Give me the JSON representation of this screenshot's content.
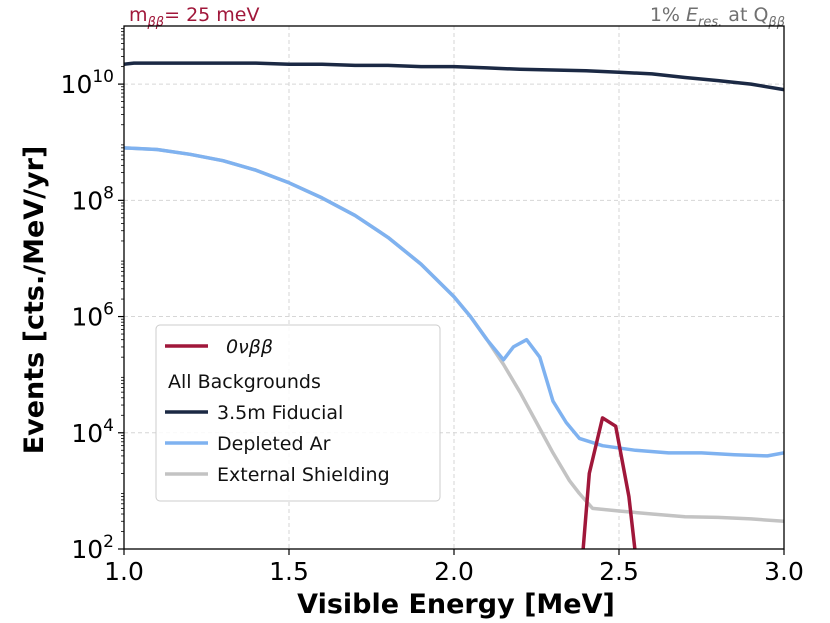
{
  "chart_data": {
    "type": "line",
    "xlabel": "Visible Energy [MeV]",
    "ylabel": "Events  [cts./MeV/yr]",
    "xlim": [
      1.0,
      3.0
    ],
    "ylim": [
      100,
      100000000000
    ],
    "yscale": "log",
    "grid": true,
    "legend_position": "lower-left",
    "x_ticks": [
      "1.0",
      "1.5",
      "2.0",
      "2.5",
      "3.0"
    ],
    "y_ticks": [
      {
        "base": "10",
        "exp": "2",
        "value": 100
      },
      {
        "base": "10",
        "exp": "4",
        "value": 10000
      },
      {
        "base": "10",
        "exp": "6",
        "value": 1000000
      },
      {
        "base": "10",
        "exp": "8",
        "value": 100000000
      },
      {
        "base": "10",
        "exp": "10",
        "value": 10000000000
      }
    ],
    "annotations": {
      "left": {
        "m": "m",
        "sub": "ββ",
        "rest": "= 25 meV",
        "color": "#a0173a"
      },
      "right": {
        "pre": "1% ",
        "e": "E",
        "esub": "res.",
        "mid": " at Q",
        "qsub": "ββ",
        "color": "#707070"
      }
    },
    "legend": {
      "signal": "0νββ",
      "header": "All Backgrounds",
      "items": [
        "3.5m Fiducial",
        "Depleted Ar",
        "External Shielding"
      ]
    },
    "series": [
      {
        "name": "0νββ",
        "color": "#a0173a",
        "x": [
          2.39,
          2.41,
          2.45,
          2.49,
          2.53,
          2.55
        ],
        "y": [
          80,
          2000,
          18000,
          13000,
          800,
          80
        ]
      },
      {
        "name": "3.5m Fiducial",
        "color": "#1b2944",
        "x": [
          1.0,
          1.03,
          1.1,
          1.2,
          1.3,
          1.4,
          1.5,
          1.6,
          1.7,
          1.8,
          1.9,
          2.0,
          2.1,
          2.2,
          2.3,
          2.4,
          2.5,
          2.6,
          2.7,
          2.8,
          2.9,
          3.0
        ],
        "y": [
          22000000000,
          23000000000,
          23000000000,
          23000000000,
          23000000000,
          23000000000,
          22000000000,
          22000000000,
          21000000000,
          21000000000,
          20000000000,
          20000000000,
          19000000000,
          18000000000,
          17500000000,
          17000000000,
          16000000000,
          15000000000,
          13000000000,
          11500000000,
          10000000000,
          8000000000
        ]
      },
      {
        "name": "Depleted Ar",
        "color": "#7fb2f0",
        "x": [
          1.0,
          1.1,
          1.2,
          1.3,
          1.4,
          1.5,
          1.6,
          1.7,
          1.8,
          1.9,
          2.0,
          2.05,
          2.1,
          2.15,
          2.18,
          2.22,
          2.26,
          2.3,
          2.34,
          2.38,
          2.45,
          2.55,
          2.65,
          2.75,
          2.85,
          2.95,
          3.0
        ],
        "y": [
          800000000,
          750000000,
          620000000,
          480000000,
          330000000,
          200000000,
          110000000,
          55000000,
          23000000,
          8000000,
          2200000,
          1000000,
          400000,
          180000,
          300000,
          400000,
          200000,
          35000,
          15000,
          8000,
          6000,
          5000,
          4500,
          4500,
          4200,
          4000,
          4500
        ]
      },
      {
        "name": "External Shielding",
        "color": "#c3c3c3",
        "x": [
          1.0,
          1.1,
          1.2,
          1.3,
          1.4,
          1.5,
          1.6,
          1.7,
          1.8,
          1.9,
          2.0,
          2.05,
          2.1,
          2.15,
          2.2,
          2.25,
          2.3,
          2.35,
          2.38,
          2.42,
          2.5,
          2.6,
          2.7,
          2.8,
          2.9,
          3.0
        ],
        "y": [
          800000000,
          750000000,
          620000000,
          480000000,
          330000000,
          200000000,
          110000000,
          55000000,
          23000000,
          8000000,
          2200000,
          1000000,
          400000,
          150000,
          50000,
          15000,
          4500,
          1500,
          900,
          500,
          450,
          400,
          360,
          350,
          330,
          300
        ]
      }
    ]
  }
}
